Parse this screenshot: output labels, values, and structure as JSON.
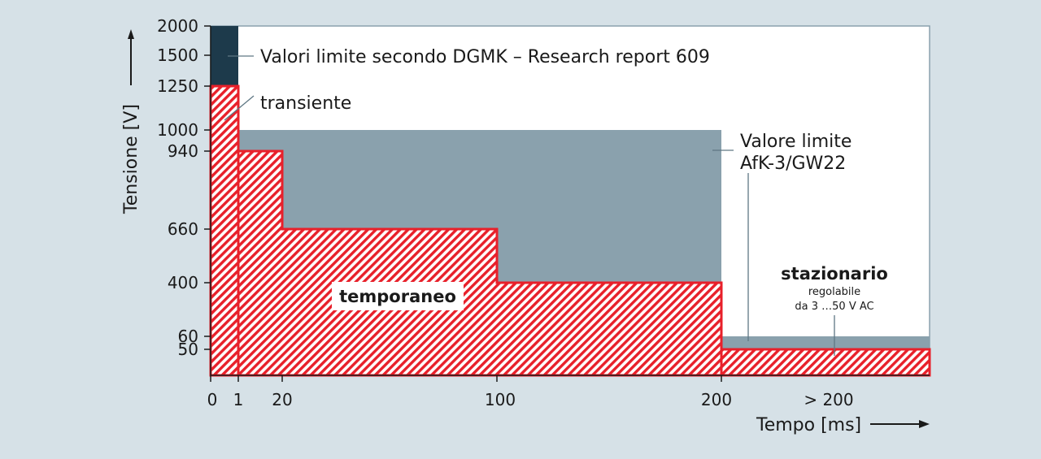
{
  "chart_data": {
    "type": "area",
    "title": "",
    "ylabel": "Tensione [V]",
    "xlabel": "Tempo [ms]",
    "x_ticks": [
      "0",
      "1",
      "20",
      "100",
      "200",
      "> 200"
    ],
    "y_ticks": [
      "2000",
      "1500",
      "1250",
      "1000",
      "940",
      "660",
      "400",
      "60",
      "50"
    ],
    "y_scale": "non-uniform",
    "legend": "none",
    "grid": false,
    "series": [
      {
        "name": "Valori limite secondo DGMK – Research report 609",
        "color": "#1d3a4b",
        "steps": [
          {
            "x": [
              "0",
              "1"
            ],
            "y": 2000
          }
        ]
      },
      {
        "name": "Valore limite AfK-3/GW22",
        "color": "#8aa1ad",
        "steps": [
          {
            "x": [
              "1",
              "200"
            ],
            "y": 1000
          },
          {
            "x": [
              "200",
              "> 200"
            ],
            "y": 60
          }
        ]
      },
      {
        "name": "transiente",
        "color": "#e8202a",
        "steps": [
          {
            "x": [
              "0",
              "1"
            ],
            "y": 1250
          }
        ]
      },
      {
        "name": "temporaneo",
        "color": "#e8202a",
        "steps": [
          {
            "x": [
              "1",
              "20"
            ],
            "y": 940
          },
          {
            "x": [
              "20",
              "100"
            ],
            "y": 660
          },
          {
            "x": [
              "100",
              "200"
            ],
            "y": 400
          }
        ]
      },
      {
        "name": "stazionario",
        "color": "#e8202a",
        "steps": [
          {
            "x": [
              "200",
              "> 200"
            ],
            "y": 50
          }
        ]
      }
    ],
    "annotations": {
      "dgmk": "Valori limite secondo DGMK – Research report 609",
      "transient": "transiente",
      "afk_line1": "Valore limite",
      "afk_line2": "AfK-3/GW22",
      "temporary": "temporaneo",
      "stationary": "stazionario",
      "stationary_sub1": "regolabile",
      "stationary_sub2": "da 3 …50 V AC"
    }
  }
}
